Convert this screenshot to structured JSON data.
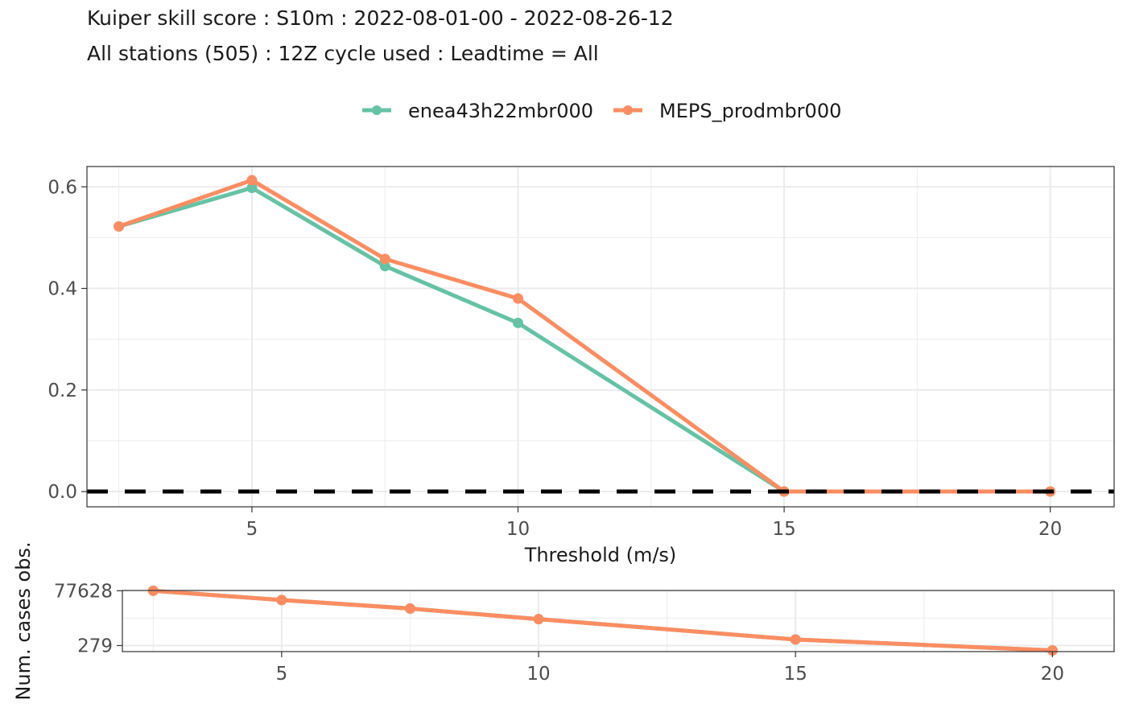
{
  "title_line1": "Kuiper skill score : S10m : 2022-08-01-00 - 2022-08-26-12",
  "title_line2": "All stations (505) : 12Z cycle used : Leadtime = All",
  "colors": {
    "enea": "#66c2a5",
    "meps": "#fc8d62",
    "zero_line": "#000000",
    "grid": "#ebebeb",
    "panel_border": "#333333"
  },
  "chart_data": [
    {
      "type": "line",
      "xlabel": "Threshold (m/s)",
      "ylabel": "",
      "xlim": [
        1.9,
        21.2
      ],
      "ylim": [
        -0.03,
        0.64
      ],
      "x_ticks": [
        5,
        10,
        15,
        20
      ],
      "x_tick_labels": [
        "5",
        "10",
        "15",
        "20"
      ],
      "y_ticks": [
        0,
        0.2,
        0.4,
        0.6
      ],
      "y_tick_labels": [
        "0.0",
        "0.2",
        "0.4",
        "0.6"
      ],
      "grid": true,
      "legend_position": "top",
      "reference_line": {
        "y": 0,
        "style": "dashed"
      },
      "x": [
        2.5,
        5,
        7.5,
        10,
        15,
        20
      ],
      "series": [
        {
          "name": "enea43h22mbr000",
          "color": "#66c2a5",
          "values": [
            0.522,
            0.598,
            0.444,
            0.332,
            0.0,
            0.0
          ]
        },
        {
          "name": "MEPS_prodmbr000",
          "color": "#fc8d62",
          "values": [
            0.522,
            0.613,
            0.458,
            0.38,
            0.0,
            0.0
          ]
        }
      ]
    },
    {
      "type": "line",
      "xlabel": "",
      "ylabel": "Num. cases obs.",
      "scale": "log",
      "xlim": [
        1.9,
        21.2
      ],
      "x_ticks": [
        5,
        10,
        15,
        20
      ],
      "x_tick_labels": [
        "5",
        "10",
        "15",
        "20"
      ],
      "y_ticks": [
        279,
        77628
      ],
      "y_tick_labels": [
        "279",
        "77628"
      ],
      "grid": true,
      "x": [
        2.5,
        5,
        7.5,
        10,
        15,
        20
      ],
      "series": [
        {
          "name": "enea43h22mbr000",
          "color": "#66c2a5",
          "values": [
            77628,
            30000,
            12500,
            4200,
            520,
            170
          ]
        },
        {
          "name": "MEPS_prodmbr000",
          "color": "#fc8d62",
          "values": [
            77628,
            30000,
            12500,
            4200,
            520,
            170
          ]
        }
      ]
    }
  ]
}
